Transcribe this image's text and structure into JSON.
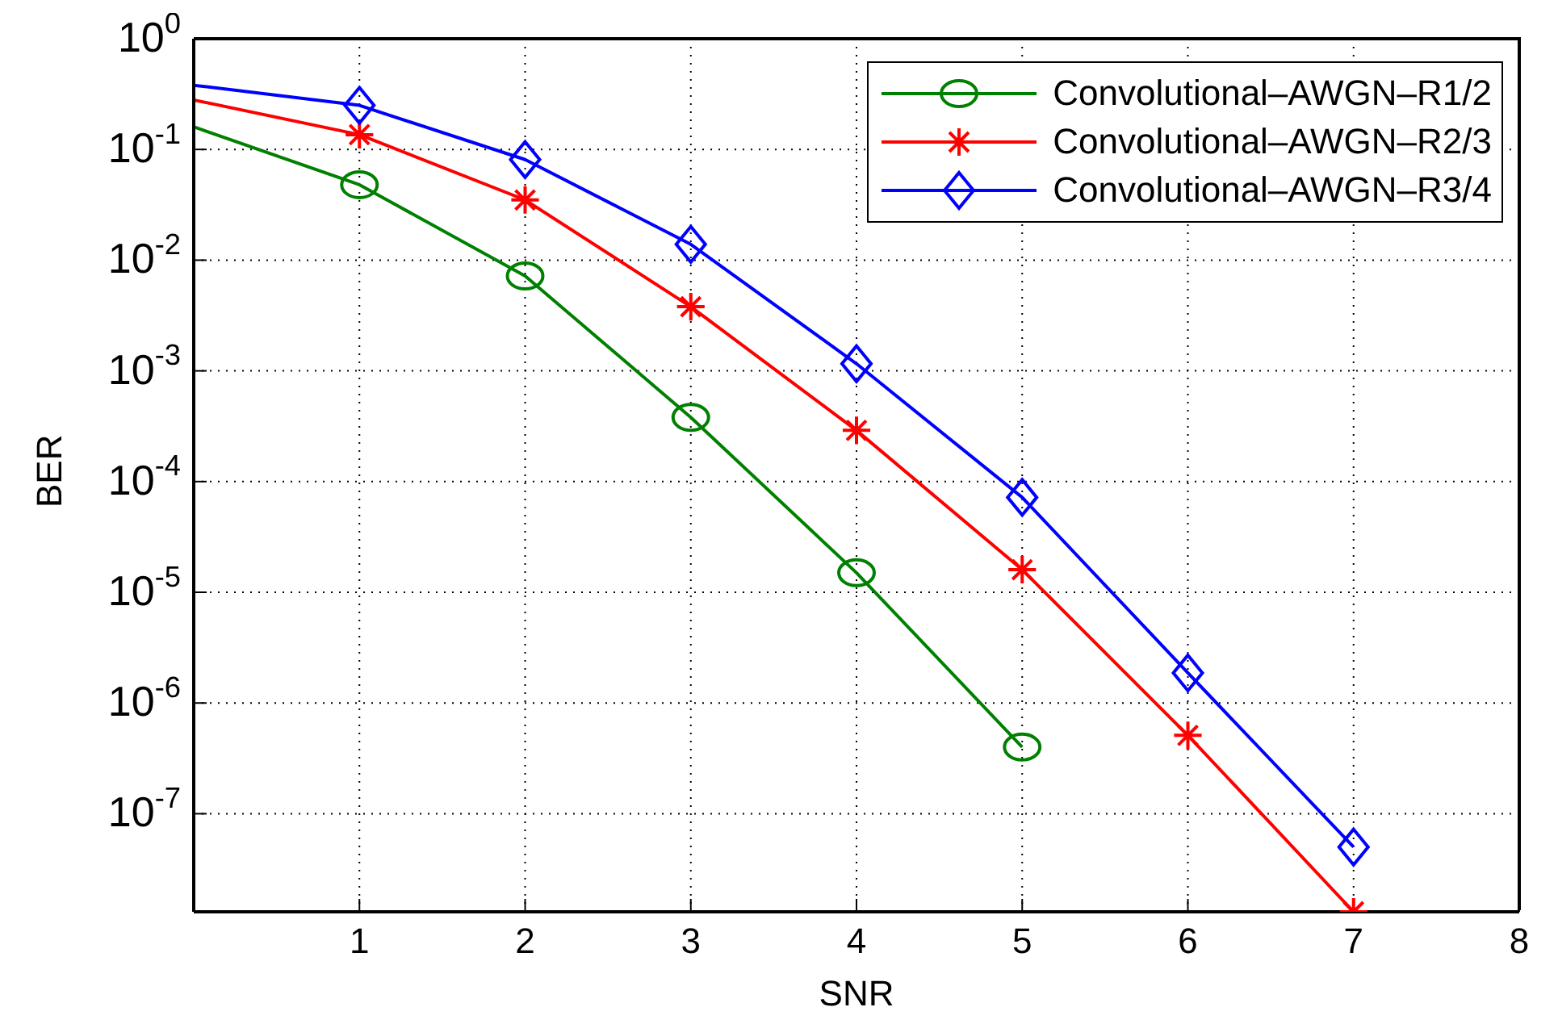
{
  "chart_data": {
    "type": "line",
    "xlabel": "SNR",
    "ylabel": "BER",
    "log": "y",
    "grid": true,
    "legend": "top right",
    "line_style": "solid",
    "x": [
      0,
      1,
      2,
      3,
      4,
      5,
      6,
      7
    ],
    "xlim": [
      0,
      8
    ],
    "xticks": [
      1,
      2,
      3,
      4,
      5,
      6,
      7,
      8
    ],
    "ylim": [
      1.3e-08,
      1
    ],
    "yticks": [
      {
        "value": 1,
        "label": "10$^{0}$"
      },
      {
        "value": 0.1,
        "label": "10$^{-1}$"
      },
      {
        "value": 0.01,
        "label": "10$^{-2}$"
      },
      {
        "value": 0.001,
        "label": "10$^{-3}$"
      },
      {
        "value": 0.0001,
        "label": "10$^{-4}$"
      },
      {
        "value": 1e-05,
        "label": "10$^{-5}$"
      },
      {
        "value": 1e-06,
        "label": "10$^{-6}$"
      },
      {
        "value": 1e-07,
        "label": "10$^{-7}$"
      }
    ],
    "series": [
      {
        "name": "Convolutional–AWGN–R1/2",
        "color": "#008000",
        "marker": "circle",
        "values": [
          0.16,
          0.048,
          0.0072,
          0.00038,
          1.5e-05,
          4e-07,
          null,
          null
        ]
      },
      {
        "name": "Convolutional–AWGN–R2/3",
        "color": "#ff0000",
        "marker": "cross",
        "values": [
          0.28,
          0.136,
          0.035,
          0.0038,
          0.00029,
          1.6e-05,
          5.1e-07,
          1.3e-08
        ]
      },
      {
        "name": "Convolutional–AWGN–R3/4",
        "color": "#0000ff",
        "marker": "diamond",
        "values": [
          0.38,
          0.25,
          0.081,
          0.0139,
          0.00116,
          7.2e-05,
          1.87e-06,
          5e-08
        ]
      }
    ]
  }
}
